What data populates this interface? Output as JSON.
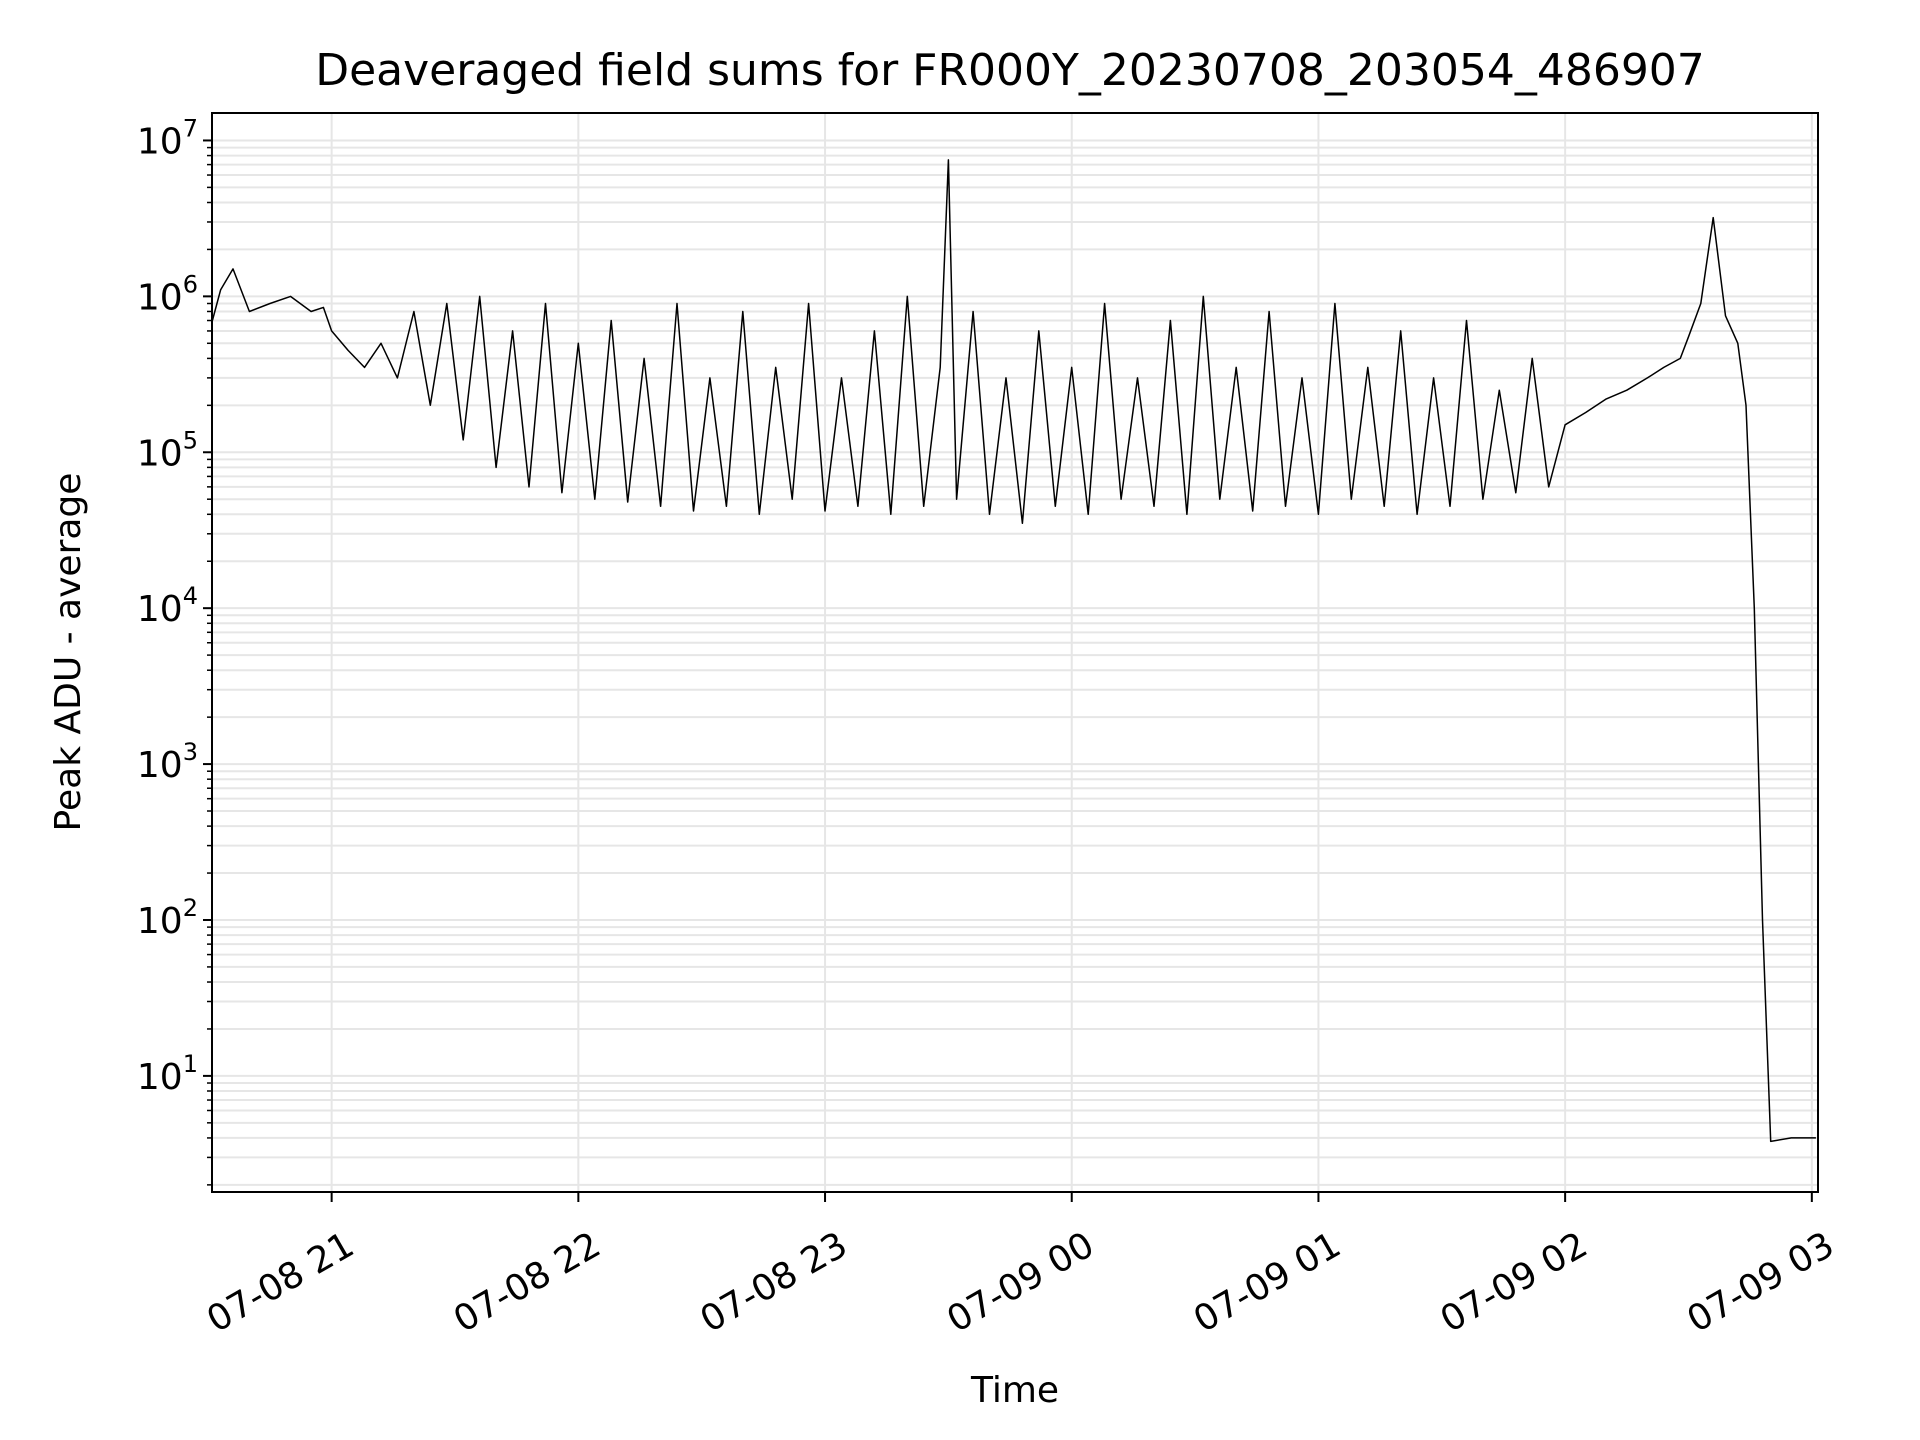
{
  "chart_data": {
    "type": "line",
    "title": "Deaveraged field sums for FR000Y_20230708_203054_486907",
    "xlabel": "Time",
    "ylabel": "Peak ADU - average",
    "yscale": "log",
    "ylim": [
      1.8,
      15000000
    ],
    "xlim": [
      "07-08 20:30:54",
      "07-09 03:01:30"
    ],
    "grid": true,
    "line_color": "#000000",
    "grid_color": "#e6e6e6",
    "xticks": [
      {
        "label": "07-08 21",
        "time": "07-08 21:00"
      },
      {
        "label": "07-08 22",
        "time": "07-08 22:00"
      },
      {
        "label": "07-08 23",
        "time": "07-08 23:00"
      },
      {
        "label": "07-09 00",
        "time": "07-09 00:00"
      },
      {
        "label": "07-09 01",
        "time": "07-09 01:00"
      },
      {
        "label": "07-09 02",
        "time": "07-09 02:00"
      },
      {
        "label": "07-09 03",
        "time": "07-09 03:00"
      }
    ],
    "yticks": [
      {
        "base": "10",
        "exp": "1",
        "value": 10
      },
      {
        "base": "10",
        "exp": "2",
        "value": 100
      },
      {
        "base": "10",
        "exp": "3",
        "value": 1000
      },
      {
        "base": "10",
        "exp": "4",
        "value": 10000
      },
      {
        "base": "10",
        "exp": "5",
        "value": 100000
      },
      {
        "base": "10",
        "exp": "6",
        "value": 1000000
      },
      {
        "base": "10",
        "exp": "7",
        "value": 10000000
      }
    ],
    "series": [
      {
        "x": [
          "07-08 20:31",
          "07-08 20:33",
          "07-08 20:36",
          "07-08 20:40",
          "07-08 20:45",
          "07-08 20:50",
          "07-08 20:55",
          "07-08 20:58",
          "07-08 21:00",
          "07-08 21:04",
          "07-08 21:08",
          "07-08 21:12",
          "07-08 21:16",
          "07-08 21:20",
          "07-08 21:24",
          "07-08 21:28",
          "07-08 21:32",
          "07-08 21:36",
          "07-08 21:40",
          "07-08 21:44",
          "07-08 21:48",
          "07-08 21:52",
          "07-08 21:56",
          "07-08 22:00",
          "07-08 22:04",
          "07-08 22:08",
          "07-08 22:12",
          "07-08 22:16",
          "07-08 22:20",
          "07-08 22:24",
          "07-08 22:28",
          "07-08 22:32",
          "07-08 22:36",
          "07-08 22:40",
          "07-08 22:44",
          "07-08 22:48",
          "07-08 22:52",
          "07-08 22:56",
          "07-08 23:00",
          "07-08 23:04",
          "07-08 23:08",
          "07-08 23:12",
          "07-08 23:16",
          "07-08 23:20",
          "07-08 23:24",
          "07-08 23:28",
          "07-08 23:30",
          "07-08 23:32",
          "07-08 23:36",
          "07-08 23:40",
          "07-08 23:44",
          "07-08 23:48",
          "07-08 23:52",
          "07-08 23:56",
          "07-09 00:00",
          "07-09 00:04",
          "07-09 00:08",
          "07-09 00:12",
          "07-09 00:16",
          "07-09 00:20",
          "07-09 00:24",
          "07-09 00:28",
          "07-09 00:32",
          "07-09 00:36",
          "07-09 00:40",
          "07-09 00:44",
          "07-09 00:48",
          "07-09 00:52",
          "07-09 00:56",
          "07-09 01:00",
          "07-09 01:04",
          "07-09 01:08",
          "07-09 01:12",
          "07-09 01:16",
          "07-09 01:20",
          "07-09 01:24",
          "07-09 01:28",
          "07-09 01:32",
          "07-09 01:36",
          "07-09 01:40",
          "07-09 01:44",
          "07-09 01:48",
          "07-09 01:52",
          "07-09 01:56",
          "07-09 02:00",
          "07-09 02:05",
          "07-09 02:10",
          "07-09 02:15",
          "07-09 02:20",
          "07-09 02:24",
          "07-09 02:28",
          "07-09 02:30",
          "07-09 02:33",
          "07-09 02:36",
          "07-09 02:39",
          "07-09 02:42",
          "07-09 02:44",
          "07-09 02:46",
          "07-09 02:47",
          "07-09 02:48",
          "07-09 02:50",
          "07-09 02:55",
          "07-09 03:00",
          "07-09 03:01"
        ],
        "y": [
          700000,
          1100000,
          1500000,
          800000,
          900000,
          1000000,
          800000,
          850000,
          600000,
          450000,
          350000,
          500000,
          300000,
          800000,
          200000,
          900000,
          120000,
          1000000,
          80000,
          600000,
          60000,
          900000,
          55000,
          500000,
          50000,
          700000,
          48000,
          400000,
          45000,
          900000,
          42000,
          300000,
          45000,
          800000,
          40000,
          350000,
          50000,
          900000,
          42000,
          300000,
          45000,
          600000,
          40000,
          1000000,
          45000,
          350000,
          7500000,
          50000,
          800000,
          40000,
          300000,
          35000,
          600000,
          45000,
          350000,
          40000,
          900000,
          50000,
          300000,
          45000,
          700000,
          40000,
          1000000,
          50000,
          350000,
          42000,
          800000,
          45000,
          300000,
          40000,
          900000,
          50000,
          350000,
          45000,
          600000,
          40000,
          300000,
          45000,
          700000,
          50000,
          250000,
          55000,
          400000,
          60000,
          150000,
          180000,
          220000,
          250000,
          300000,
          350000,
          400000,
          550000,
          900000,
          3200000,
          750000,
          500000,
          200000,
          10000,
          1000,
          100,
          3.8,
          4,
          4,
          4
        ]
      }
    ]
  }
}
